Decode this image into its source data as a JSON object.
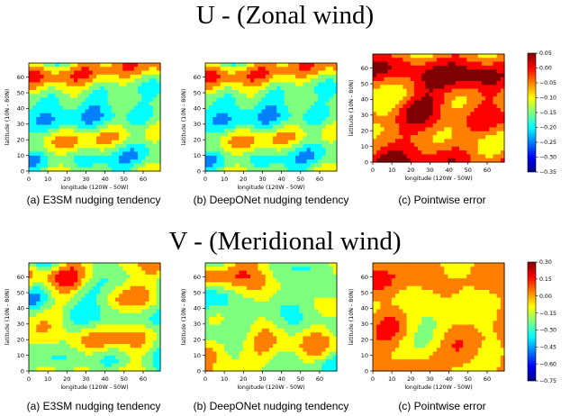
{
  "rows": [
    {
      "title": "U - (Zonal wind)",
      "panels": [
        {
          "caption": "(a) E3SM nudging tendency",
          "palette": "full",
          "seed": 11
        },
        {
          "caption": "(b) DeepONet nudging tendency",
          "palette": "full",
          "seed": 11
        },
        {
          "caption": "(c) Pointwise error",
          "palette": "red",
          "seed": 37
        }
      ],
      "colorbar": {
        "ticks": [
          "0.05",
          "0.00",
          "−0.05",
          "−0.10",
          "−0.15",
          "−0.20",
          "−0.25",
          "−0.30",
          "−0.35"
        ]
      }
    },
    {
      "title": "V - (Meridional wind)",
      "panels": [
        {
          "caption": "(a) E3SM nudging tendency",
          "palette": "mid",
          "seed": 23
        },
        {
          "caption": "(b) DeepONet nudging tendency",
          "palette": "mid",
          "seed": 29
        },
        {
          "caption": "(c) Pointwise error",
          "palette": "orange",
          "seed": 53
        }
      ],
      "colorbar": {
        "ticks": [
          "0.30",
          "0.15",
          "0.00",
          "−0.15",
          "−0.30",
          "−0.45",
          "−0.60",
          "−0.75"
        ]
      }
    }
  ],
  "axes": {
    "xlabel": "longitude (120W - 50W)",
    "ylabel": "latitude (10N - 80N)",
    "xticks": [
      "0",
      "10",
      "20",
      "30",
      "40",
      "50",
      "60"
    ],
    "yticks": [
      "0",
      "10",
      "20",
      "30",
      "40",
      "50",
      "60"
    ]
  },
  "colors": {
    "colormap": [
      "#00007f",
      "#0000ff",
      "#007fff",
      "#00ffff",
      "#7fff7f",
      "#ffff00",
      "#ff7f00",
      "#ff0000",
      "#7f0000"
    ]
  },
  "chart_data": [
    {
      "type": "heatmap",
      "title": "U - (Zonal wind)",
      "subplot": "(a) E3SM nudging tendency",
      "xlabel": "longitude (120W - 50W)",
      "ylabel": "latitude (10N - 80N)",
      "xlim": [
        0,
        69
      ],
      "ylim": [
        0,
        69
      ],
      "colormap": "jet"
    },
    {
      "type": "heatmap",
      "title": "U - (Zonal wind)",
      "subplot": "(b) DeepONet nudging tendency",
      "xlabel": "longitude (120W - 50W)",
      "ylabel": "latitude (10N - 80N)",
      "xlim": [
        0,
        69
      ],
      "ylim": [
        0,
        69
      ],
      "colormap": "jet"
    },
    {
      "type": "heatmap",
      "title": "U - (Zonal wind)",
      "subplot": "(c) Pointwise error",
      "xlabel": "longitude (120W - 50W)",
      "ylabel": "latitude (10N - 80N)",
      "xlim": [
        0,
        69
      ],
      "ylim": [
        0,
        69
      ],
      "colormap": "jet",
      "colorbar_range": [
        -0.35,
        0.05
      ]
    },
    {
      "type": "heatmap",
      "title": "V - (Meridional wind)",
      "subplot": "(a) E3SM nudging tendency",
      "xlabel": "longitude (120W - 50W)",
      "ylabel": "latitude (10N - 80N)",
      "xlim": [
        0,
        69
      ],
      "ylim": [
        0,
        69
      ],
      "colormap": "jet"
    },
    {
      "type": "heatmap",
      "title": "V - (Meridional wind)",
      "subplot": "(b) DeepONet nudging tendency",
      "xlabel": "longitude (120W - 50W)",
      "ylabel": "latitude (10N - 80N)",
      "xlim": [
        0,
        69
      ],
      "ylim": [
        0,
        69
      ],
      "colormap": "jet"
    },
    {
      "type": "heatmap",
      "title": "V - (Meridional wind)",
      "subplot": "(c) Pointwise error",
      "xlabel": "longitude (120W - 50W)",
      "ylabel": "latitude (10N - 80N)",
      "xlim": [
        0,
        69
      ],
      "ylim": [
        0,
        69
      ],
      "colormap": "jet",
      "colorbar_range": [
        -0.75,
        0.3
      ]
    }
  ]
}
